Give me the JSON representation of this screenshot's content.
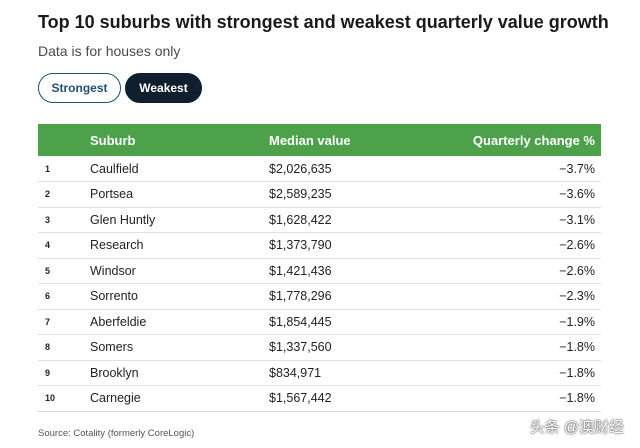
{
  "title": "Top 10 suburbs with strongest and weakest quarterly value growth",
  "subtitle": "Data is for houses only",
  "toggles": {
    "strongest_label": "Strongest",
    "weakest_label": "Weakest",
    "active": "Weakest"
  },
  "colors": {
    "header_bg": "#4ca14a",
    "active_toggle_bg": "#0f1f2e",
    "inactive_toggle_border": "#1f4f73"
  },
  "table": {
    "headers": {
      "rank": "",
      "suburb": "Suburb",
      "value": "Median value",
      "change": "Quarterly change %"
    },
    "rows": [
      {
        "rank": "1",
        "suburb": "Caulfield",
        "value": "$2,026,635",
        "change": "−3.7%"
      },
      {
        "rank": "2",
        "suburb": "Portsea",
        "value": "$2,589,235",
        "change": "−3.6%"
      },
      {
        "rank": "3",
        "suburb": "Glen Huntly",
        "value": "$1,628,422",
        "change": "−3.1%"
      },
      {
        "rank": "4",
        "suburb": "Research",
        "value": "$1,373,790",
        "change": "−2.6%"
      },
      {
        "rank": "5",
        "suburb": "Windsor",
        "value": "$1,421,436",
        "change": "−2.6%"
      },
      {
        "rank": "6",
        "suburb": "Sorrento",
        "value": "$1,778,296",
        "change": "−2.3%"
      },
      {
        "rank": "7",
        "suburb": "Aberfeldie",
        "value": "$1,854,445",
        "change": "−1.9%"
      },
      {
        "rank": "8",
        "suburb": "Somers",
        "value": "$1,337,560",
        "change": "−1.8%"
      },
      {
        "rank": "9",
        "suburb": "Brooklyn",
        "value": "$834,971",
        "change": "−1.8%"
      },
      {
        "rank": "10",
        "suburb": "Carnegie",
        "value": "$1,567,442",
        "change": "−1.8%"
      }
    ]
  },
  "source": "Source: Cotality (formerly CoreLogic)",
  "watermark": "头条 @澳财经"
}
